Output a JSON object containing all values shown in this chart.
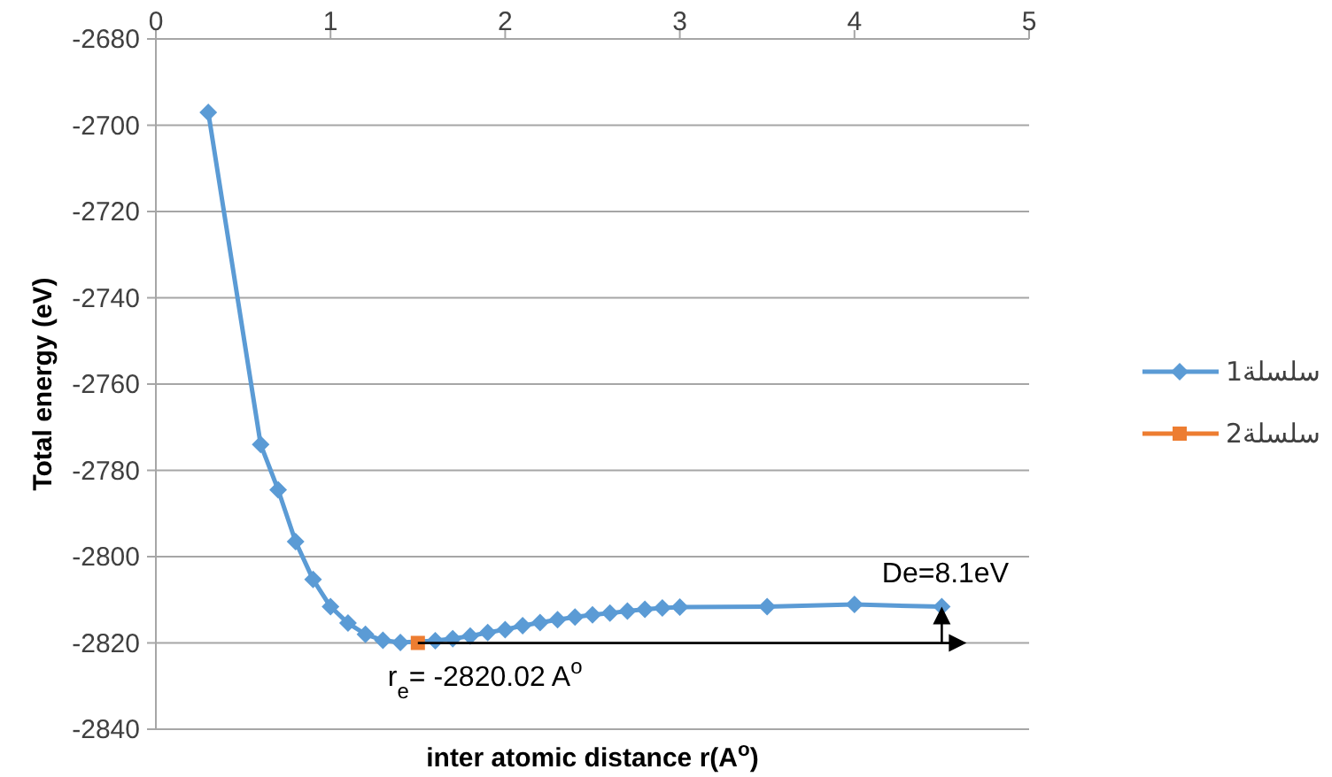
{
  "chart_data": {
    "type": "line",
    "xlabel": "inter atomic distance r(A$^{o}$)",
    "ylabel": "Total energy (eV)",
    "xlim": [
      0,
      5
    ],
    "xticks": [
      0,
      1,
      2,
      3,
      4,
      5
    ],
    "ylim": [
      -2840,
      -2680
    ],
    "yticks": [
      -2840,
      -2820,
      -2800,
      -2780,
      -2760,
      -2740,
      -2720,
      -2700,
      -2680
    ],
    "grid": "y",
    "legend": "right",
    "line_style": "solid",
    "series": [
      {
        "name": "سلسلة1",
        "color": "#5b9bd5",
        "marker": "diamond",
        "x": [
          0.3,
          0.6,
          0.7,
          0.8,
          0.9,
          1.0,
          1.1,
          1.2,
          1.3,
          1.4,
          1.6,
          1.7,
          1.8,
          1.9,
          2.0,
          2.1,
          2.2,
          2.3,
          2.4,
          2.5,
          2.6,
          2.7,
          2.8,
          2.9,
          3.0,
          3.5,
          4.0,
          4.5
        ],
        "values": [
          -2697,
          -2774,
          -2784.5,
          -2796.5,
          -2805.3,
          -2811.6,
          -2815.4,
          -2818,
          -2819.4,
          -2819.9,
          -2819.5,
          -2819,
          -2818.4,
          -2817.6,
          -2816.9,
          -2816,
          -2815.3,
          -2814.6,
          -2814,
          -2813.5,
          -2813.1,
          -2812.6,
          -2812.2,
          -2811.9,
          -2811.7,
          -2811.6,
          -2811.1,
          -2811.6
        ]
      },
      {
        "name": "سلسلة2",
        "color": "#ed7d31",
        "marker": "square",
        "x": [
          1.5
        ],
        "values": [
          -2820
        ]
      }
    ],
    "annotations": [
      {
        "text": "r$_{e}$= -2820.02 A$^{o}$",
        "x": 1.5,
        "y": -2820.02
      },
      {
        "text": "De=8.1eV",
        "x": 4.5,
        "y": -2811.6
      }
    ]
  }
}
